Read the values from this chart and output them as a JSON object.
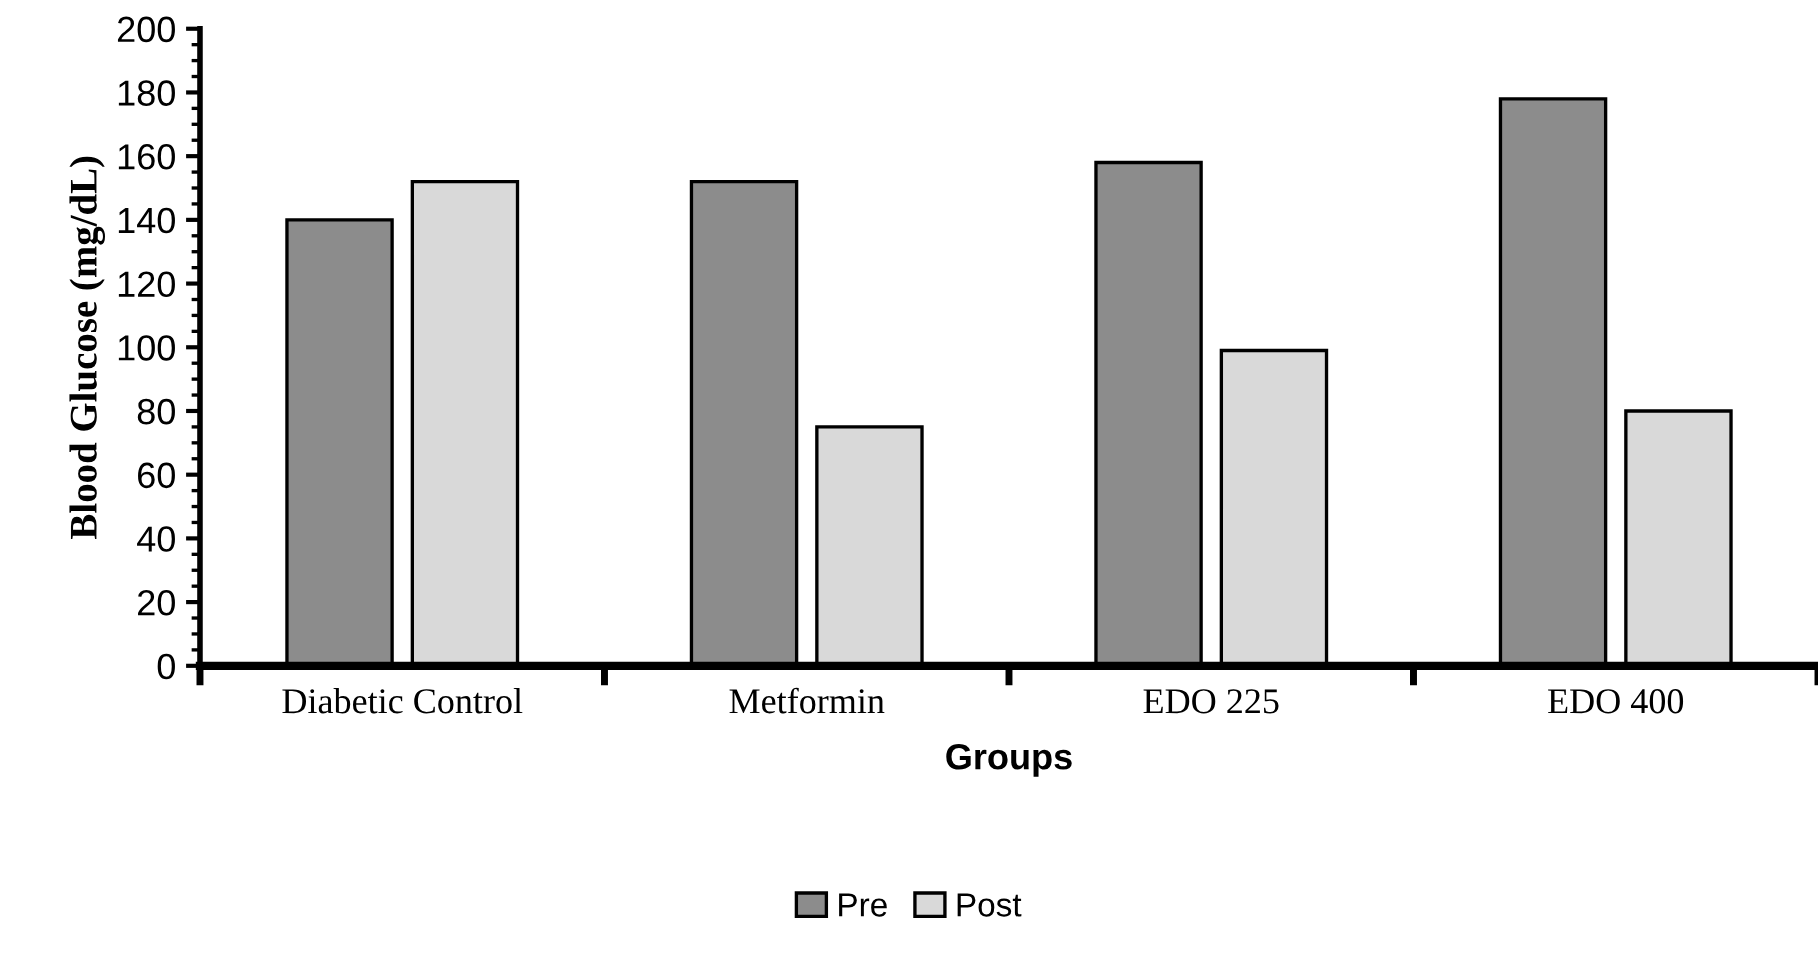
{
  "chart_data": {
    "type": "bar",
    "xlabel": "Groups",
    "ylabel": "Blood Glucose (mg/dL)",
    "categories": [
      "Diabetic Control",
      "Metformin",
      "EDO 225",
      "EDO 400"
    ],
    "series": [
      {
        "name": "Pre",
        "color": "#8c8c8c",
        "values": [
          140,
          152,
          158,
          178
        ]
      },
      {
        "name": "Post",
        "color": "#d9d9d9",
        "values": [
          152,
          75,
          99,
          80
        ]
      }
    ],
    "ylim": [
      0,
      200
    ],
    "yticks": [
      0,
      20,
      40,
      60,
      80,
      100,
      120,
      140,
      160,
      180,
      200
    ],
    "grid": false,
    "legend": "bottom"
  }
}
